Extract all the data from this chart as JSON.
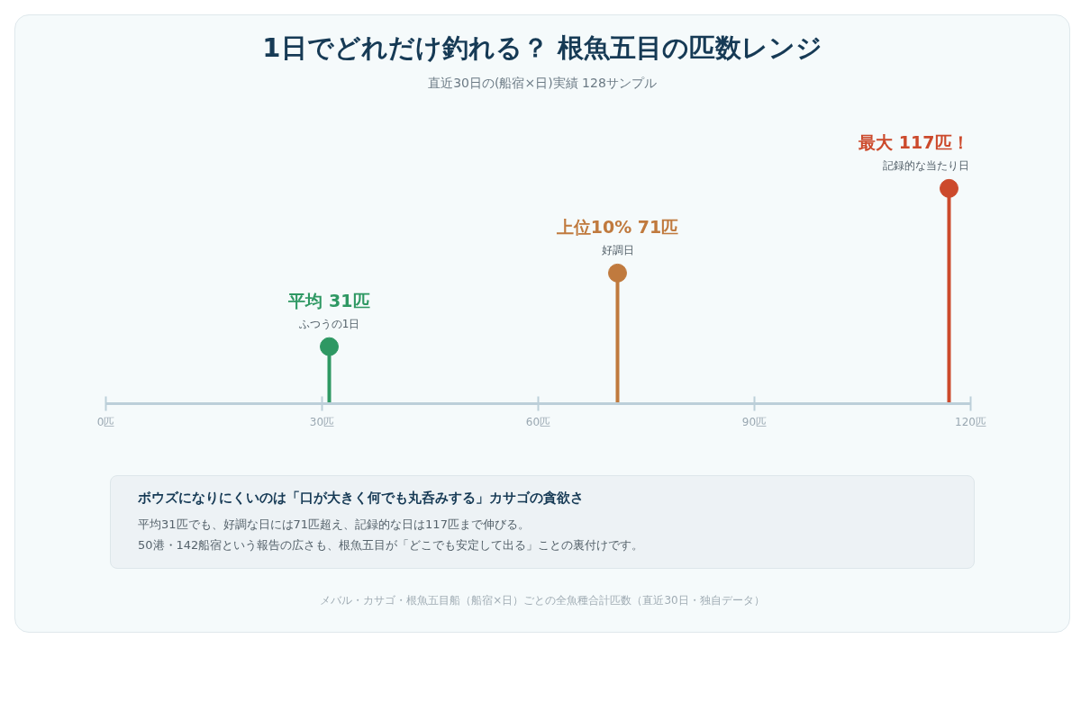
{
  "chart_data": {
    "type": "lollipop",
    "title": "1日でどれだけ釣れる？ 根魚五目の匹数レンジ",
    "subtitle": "直近30日の(船宿×日)実績 128サンプル",
    "x": [
      31,
      71,
      117
    ],
    "values": [
      31,
      71,
      117
    ],
    "colors": [
      "#2e9863",
      "#c07a3e",
      "#cc4a2c"
    ],
    "value_labels": [
      "平均 31匹",
      "上位10% 71匹",
      "最大 117匹！"
    ],
    "xlim": [
      0,
      120
    ],
    "xticks": [
      {
        "value": 0,
        "label": "0匹"
      },
      {
        "value": 30,
        "label": "30匹"
      },
      {
        "value": 60,
        "label": "60匹"
      },
      {
        "value": 90,
        "label": "90匹"
      },
      {
        "value": 120,
        "label": "120匹"
      }
    ],
    "tick_labels": "x",
    "grid": false,
    "marker": "circle",
    "annotations": [
      {
        "text": "ふつうの1日",
        "x": 31,
        "y": 31
      },
      {
        "text": "好調日",
        "x": 71,
        "y": 71
      },
      {
        "text": "記録的な当たり日",
        "x": 117,
        "y": 117
      },
      "ボウズになりにくいのは「口が大きく何でも丸呑みする」カサゴの貪欲さ",
      "平均31匹でも、好調な日には71匹超え、記録的な日は117匹まで伸びる。",
      "50港・142船宿という報告の広さも、根魚五目が「どこでも安定して出る」ことの裏付けです。",
      "メバル・カサゴ・根魚五目船（船宿×日）ごとの全魚種合計匹数（直近30日・独自データ）"
    ]
  }
}
